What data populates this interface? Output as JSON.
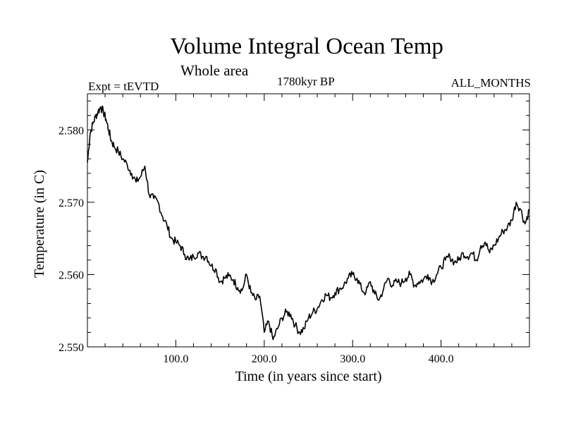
{
  "header": {
    "title": "Volume Integral Ocean Temp",
    "subtitle": "Whole area",
    "left_label": "Expt = tEVTD",
    "center_label": "1780kyr BP",
    "right_label": "ALL_MONTHS"
  },
  "chart_data": {
    "type": "line",
    "title": "Volume Integral Ocean Temp",
    "subtitle": "Whole area",
    "xlabel": "Time (in years since start)",
    "ylabel": "Temperature (in C)",
    "xlim": [
      0,
      500
    ],
    "ylim": [
      2.55,
      2.585
    ],
    "x_ticks": [
      100,
      200,
      300,
      400
    ],
    "x_tick_labels": [
      "100.0",
      "200.0",
      "300.0",
      "400.0"
    ],
    "y_ticks": [
      2.55,
      2.56,
      2.57,
      2.58
    ],
    "y_tick_labels": [
      "2.550",
      "2.560",
      "2.570",
      "2.580"
    ],
    "grid": false,
    "series": [
      {
        "name": "Volume integral ocean temperature",
        "x": [
          0,
          3,
          6,
          9,
          12,
          15,
          18,
          21,
          24,
          27,
          30,
          35,
          40,
          45,
          50,
          55,
          60,
          65,
          70,
          75,
          80,
          85,
          90,
          95,
          100,
          105,
          110,
          115,
          120,
          125,
          130,
          135,
          140,
          145,
          150,
          155,
          160,
          165,
          170,
          175,
          180,
          185,
          190,
          195,
          200,
          205,
          210,
          215,
          220,
          225,
          230,
          235,
          240,
          245,
          250,
          255,
          260,
          265,
          270,
          275,
          280,
          285,
          290,
          295,
          300,
          305,
          310,
          315,
          320,
          325,
          330,
          335,
          340,
          345,
          350,
          355,
          360,
          365,
          370,
          375,
          380,
          385,
          390,
          395,
          400,
          405,
          410,
          415,
          420,
          425,
          430,
          435,
          440,
          445,
          450,
          455,
          460,
          465,
          470,
          475,
          480,
          485,
          490,
          495,
          500
        ],
        "values": [
          2.5755,
          2.5795,
          2.5808,
          2.5818,
          2.5825,
          2.5832,
          2.5825,
          2.5815,
          2.58,
          2.5785,
          2.5778,
          2.577,
          2.576,
          2.5752,
          2.574,
          2.5728,
          2.5735,
          2.575,
          2.571,
          2.5705,
          2.57,
          2.568,
          2.5668,
          2.565,
          2.5645,
          2.564,
          2.5628,
          2.562,
          2.5625,
          2.563,
          2.5625,
          2.5625,
          2.5612,
          2.5608,
          2.559,
          2.5595,
          2.5598,
          2.5593,
          2.5582,
          2.5578,
          2.56,
          2.5575,
          2.5565,
          2.557,
          2.552,
          2.5535,
          2.551,
          2.5525,
          2.554,
          2.5548,
          2.5545,
          2.553,
          2.552,
          2.5525,
          2.554,
          2.5548,
          2.5553,
          2.5565,
          2.5572,
          2.5568,
          2.5575,
          2.558,
          2.5585,
          2.5595,
          2.56,
          2.5595,
          2.558,
          2.5575,
          2.559,
          2.5573,
          2.5565,
          2.558,
          2.5595,
          2.5585,
          2.559,
          2.5588,
          2.5595,
          2.56,
          2.5585,
          2.559,
          2.5593,
          2.56,
          2.559,
          2.56,
          2.561,
          2.562,
          2.5625,
          2.5617,
          2.562,
          2.563,
          2.5625,
          2.563,
          2.562,
          2.564,
          2.5645,
          2.563,
          2.564,
          2.565,
          2.566,
          2.5665,
          2.5675,
          2.57,
          2.569,
          2.567,
          2.569
        ]
      }
    ]
  }
}
